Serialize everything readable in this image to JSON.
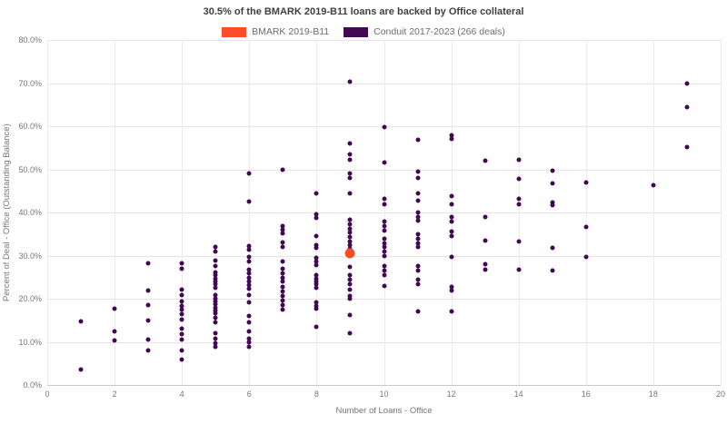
{
  "title": "30.5% of the BMARK 2019-B11 loans are backed by Office collateral",
  "legend": {
    "items": [
      {
        "id": "bmark",
        "label": "BMARK 2019-B11",
        "color": "#fa4d26"
      },
      {
        "id": "conduit",
        "label": "Conduit 2017-2023 (266 deals)",
        "color": "#420854"
      }
    ]
  },
  "chart_data": {
    "type": "scatter",
    "title": "30.5% of the BMARK 2019-B11 loans are backed by Office collateral",
    "xlabel": "Number of Loans - Office",
    "ylabel": "Percent of Deal - Office (Outstanding Balance)",
    "xlim": [
      0,
      20
    ],
    "ylim": [
      0,
      80
    ],
    "x_ticks": [
      0,
      2,
      4,
      6,
      8,
      10,
      12,
      14,
      16,
      18,
      20
    ],
    "y_ticks": [
      0,
      10,
      20,
      30,
      40,
      50,
      60,
      70,
      80
    ],
    "y_tick_labels": [
      "0.0%",
      "10.0%",
      "20.0%",
      "30.0%",
      "40.0%",
      "50.0%",
      "60.0%",
      "70.0%",
      "80.0%"
    ],
    "grid": true,
    "legend_position": "top-center",
    "series": [
      {
        "name": "Conduit 2017-2023 (266 deals)",
        "color": "#420854",
        "marker_size": 5,
        "points": [
          [
            1,
            14.8
          ],
          [
            1,
            3.5
          ],
          [
            2,
            17.6
          ],
          [
            2,
            12.4
          ],
          [
            2,
            10.3
          ],
          [
            3,
            28.3
          ],
          [
            3,
            22.0
          ],
          [
            3,
            18.5
          ],
          [
            3,
            15.0
          ],
          [
            3,
            10.6
          ],
          [
            3,
            7.9
          ],
          [
            4,
            28.2
          ],
          [
            4,
            27.0
          ],
          [
            4,
            22.2
          ],
          [
            4,
            20.9
          ],
          [
            4,
            19.3
          ],
          [
            4,
            18.4
          ],
          [
            4,
            17.5
          ],
          [
            4,
            16.4
          ],
          [
            4,
            15.1
          ],
          [
            4,
            13.0
          ],
          [
            4,
            11.8
          ],
          [
            4,
            10.5
          ],
          [
            4,
            7.9
          ],
          [
            4,
            5.8
          ],
          [
            5,
            32.0
          ],
          [
            5,
            31.0
          ],
          [
            5,
            28.9
          ],
          [
            5,
            27.5
          ],
          [
            5,
            26.1
          ],
          [
            5,
            25.4
          ],
          [
            5,
            24.7
          ],
          [
            5,
            24.0
          ],
          [
            5,
            23.3
          ],
          [
            5,
            22.6
          ],
          [
            5,
            20.8
          ],
          [
            5,
            20.1
          ],
          [
            5,
            19.4
          ],
          [
            5,
            18.7
          ],
          [
            5,
            18.0
          ],
          [
            5,
            17.3
          ],
          [
            5,
            16.6
          ],
          [
            5,
            15.6
          ],
          [
            5,
            14.5
          ],
          [
            5,
            12.1
          ],
          [
            5,
            10.7
          ],
          [
            5,
            9.7
          ],
          [
            5,
            8.8
          ],
          [
            6,
            49.0
          ],
          [
            6,
            42.5
          ],
          [
            6,
            32.2
          ],
          [
            6,
            31.3
          ],
          [
            6,
            29.7
          ],
          [
            6,
            28.6
          ],
          [
            6,
            26.8
          ],
          [
            6,
            25.8
          ],
          [
            6,
            24.8
          ],
          [
            6,
            24.0
          ],
          [
            6,
            23.2
          ],
          [
            6,
            22.4
          ],
          [
            6,
            20.9
          ],
          [
            6,
            19.1
          ],
          [
            6,
            16.0
          ],
          [
            6,
            14.6
          ],
          [
            6,
            12.4
          ],
          [
            6,
            10.7
          ],
          [
            6,
            9.8
          ],
          [
            6,
            8.9
          ],
          [
            7,
            49.8
          ],
          [
            7,
            36.8
          ],
          [
            7,
            36.0
          ],
          [
            7,
            35.1
          ],
          [
            7,
            33.0
          ],
          [
            7,
            31.9
          ],
          [
            7,
            28.7
          ],
          [
            7,
            26.9
          ],
          [
            7,
            25.9
          ],
          [
            7,
            24.9
          ],
          [
            7,
            23.9
          ],
          [
            7,
            22.8
          ],
          [
            7,
            21.7
          ],
          [
            7,
            20.7
          ],
          [
            7,
            19.6
          ],
          [
            7,
            18.5
          ],
          [
            7,
            17.4
          ],
          [
            8,
            44.5
          ],
          [
            8,
            39.6
          ],
          [
            8,
            38.8
          ],
          [
            8,
            34.6
          ],
          [
            8,
            32.5
          ],
          [
            8,
            31.7
          ],
          [
            8,
            29.5
          ],
          [
            8,
            28.7
          ],
          [
            8,
            27.7
          ],
          [
            8,
            25.5
          ],
          [
            8,
            24.7
          ],
          [
            8,
            24.0
          ],
          [
            8,
            23.3
          ],
          [
            8,
            22.6
          ],
          [
            8,
            19.2
          ],
          [
            8,
            18.4
          ],
          [
            8,
            17.6
          ],
          [
            8,
            13.4
          ],
          [
            9,
            70.3
          ],
          [
            9,
            56.1
          ],
          [
            9,
            53.4
          ],
          [
            9,
            52.3
          ],
          [
            9,
            49.1
          ],
          [
            9,
            48.0
          ],
          [
            9,
            44.5
          ],
          [
            9,
            38.3
          ],
          [
            9,
            37.3
          ],
          [
            9,
            36.3
          ],
          [
            9,
            35.3
          ],
          [
            9,
            34.3
          ],
          [
            9,
            33.3
          ],
          [
            9,
            32.4
          ],
          [
            9,
            31.6
          ],
          [
            9,
            27.4
          ],
          [
            9,
            25.5
          ],
          [
            9,
            24.5
          ],
          [
            9,
            23.4
          ],
          [
            9,
            22.1
          ],
          [
            9,
            20.7
          ],
          [
            9,
            19.9
          ],
          [
            9,
            16.3
          ],
          [
            9,
            11.9
          ],
          [
            10,
            59.7
          ],
          [
            10,
            51.5
          ],
          [
            10,
            43.1
          ],
          [
            10,
            42.0
          ],
          [
            10,
            37.9
          ],
          [
            10,
            36.8
          ],
          [
            10,
            35.7
          ],
          [
            10,
            33.9
          ],
          [
            10,
            32.9
          ],
          [
            10,
            31.9
          ],
          [
            10,
            30.9
          ],
          [
            10,
            29.8
          ],
          [
            10,
            27.6
          ],
          [
            10,
            26.5
          ],
          [
            10,
            25.5
          ],
          [
            10,
            22.9
          ],
          [
            11,
            56.8
          ],
          [
            11,
            49.4
          ],
          [
            11,
            48.1
          ],
          [
            11,
            44.5
          ],
          [
            11,
            42.7
          ],
          [
            11,
            39.9
          ],
          [
            11,
            39.0
          ],
          [
            11,
            38.2
          ],
          [
            11,
            35.0
          ],
          [
            11,
            33.9
          ],
          [
            11,
            32.9
          ],
          [
            11,
            31.9
          ],
          [
            11,
            27.6
          ],
          [
            11,
            26.5
          ],
          [
            11,
            24.5
          ],
          [
            11,
            23.4
          ],
          [
            11,
            17.1
          ],
          [
            12,
            58.0
          ],
          [
            12,
            57.1
          ],
          [
            12,
            43.8
          ],
          [
            12,
            42.0
          ],
          [
            12,
            38.9
          ],
          [
            12,
            37.9
          ],
          [
            12,
            35.5
          ],
          [
            12,
            34.6
          ],
          [
            12,
            29.7
          ],
          [
            12,
            22.8
          ],
          [
            12,
            21.9
          ],
          [
            12,
            17.0
          ],
          [
            13,
            52.0
          ],
          [
            13,
            39.0
          ],
          [
            13,
            33.4
          ],
          [
            13,
            28.0
          ],
          [
            13,
            26.7
          ],
          [
            14,
            52.3
          ],
          [
            14,
            47.7
          ],
          [
            14,
            43.1
          ],
          [
            14,
            42.0
          ],
          [
            14,
            33.3
          ],
          [
            14,
            26.7
          ],
          [
            15,
            49.6
          ],
          [
            15,
            46.7
          ],
          [
            15,
            42.4
          ],
          [
            15,
            41.6
          ],
          [
            15,
            31.8
          ],
          [
            15,
            26.5
          ],
          [
            16,
            47.0
          ],
          [
            16,
            36.6
          ],
          [
            16,
            29.7
          ],
          [
            18,
            46.4
          ],
          [
            19,
            69.8
          ],
          [
            19,
            64.4
          ],
          [
            19,
            55.2
          ]
        ]
      },
      {
        "name": "BMARK 2019-B11",
        "color": "#fa4d26",
        "marker_size": 11,
        "points": [
          [
            9,
            30.5
          ]
        ]
      }
    ]
  }
}
